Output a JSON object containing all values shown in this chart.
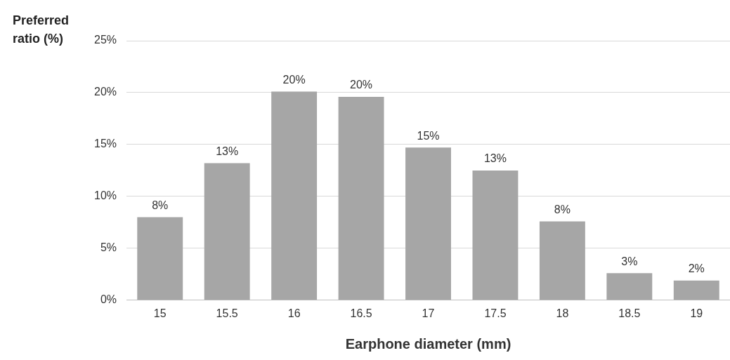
{
  "chart_data": {
    "type": "bar",
    "xlabel": "Earphone diameter (mm)",
    "ylabel": "Preferred ratio (%)",
    "categories": [
      "15",
      "15.5",
      "16",
      "16.5",
      "17",
      "17.5",
      "18",
      "18.5",
      "19"
    ],
    "values": [
      8.0,
      13.2,
      20.1,
      19.6,
      14.7,
      12.5,
      7.6,
      2.6,
      1.9
    ],
    "value_labels": [
      "8%",
      "13%",
      "20%",
      "20%",
      "15%",
      "13%",
      "8%",
      "3%",
      "2%"
    ],
    "color": "#a6a6a6",
    "ylim": [
      0,
      25
    ],
    "yticks": [
      {
        "value": 0,
        "label": "0%"
      },
      {
        "value": 5,
        "label": "5%"
      },
      {
        "value": 10,
        "label": "10%"
      },
      {
        "value": 15,
        "label": "15%"
      },
      {
        "value": 20,
        "label": "20%"
      },
      {
        "value": 25,
        "label": "25%"
      }
    ],
    "grid": "y"
  }
}
